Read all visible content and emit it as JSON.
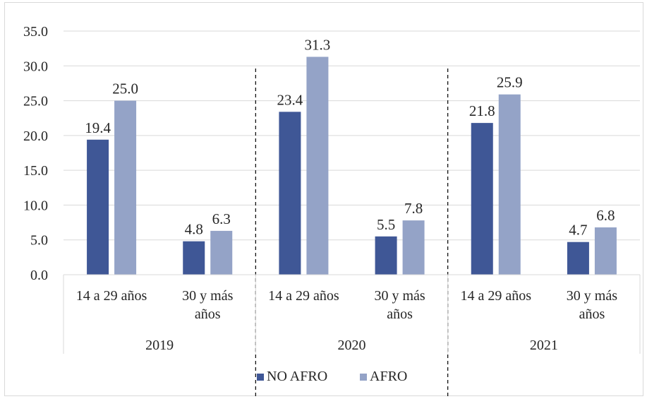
{
  "chart_data": {
    "type": "bar",
    "title": "",
    "xlabel": "",
    "ylabel": "",
    "ylim": [
      0,
      35
    ],
    "y_ticks": [
      "0.0",
      "5.0",
      "10.0",
      "15.0",
      "20.0",
      "25.0",
      "30.0",
      "35.0"
    ],
    "grid": true,
    "legend_position": "bottom",
    "groups": [
      {
        "label": "2019",
        "categories": [
          {
            "label": [
              "14 a 29 años"
            ],
            "values": [
              19.4,
              25.0
            ],
            "labels": [
              "19.4",
              "25.0"
            ]
          },
          {
            "label": [
              "30 y más",
              "años"
            ],
            "values": [
              4.8,
              6.3
            ],
            "labels": [
              "4.8",
              "6.3"
            ]
          }
        ]
      },
      {
        "label": "2020",
        "categories": [
          {
            "label": [
              "14 a 29 años"
            ],
            "values": [
              23.4,
              31.3
            ],
            "labels": [
              "23.4",
              "31.3"
            ]
          },
          {
            "label": [
              "30 y más",
              "años"
            ],
            "values": [
              5.5,
              7.8
            ],
            "labels": [
              "5.5",
              "7.8"
            ]
          }
        ]
      },
      {
        "label": "2021",
        "categories": [
          {
            "label": [
              "14 a 29 años"
            ],
            "values": [
              21.8,
              25.9
            ],
            "labels": [
              "21.8",
              "25.9"
            ]
          },
          {
            "label": [
              "30 y más",
              "años"
            ],
            "values": [
              4.7,
              6.8
            ],
            "labels": [
              "4.7",
              "6.8"
            ]
          }
        ]
      }
    ],
    "series": [
      {
        "name": "NO AFRO",
        "color": "#3f5796"
      },
      {
        "name": "AFRO",
        "color": "#94a3c7"
      }
    ],
    "gridline_color": "#d9d9d9",
    "separator_color": "#000000"
  }
}
